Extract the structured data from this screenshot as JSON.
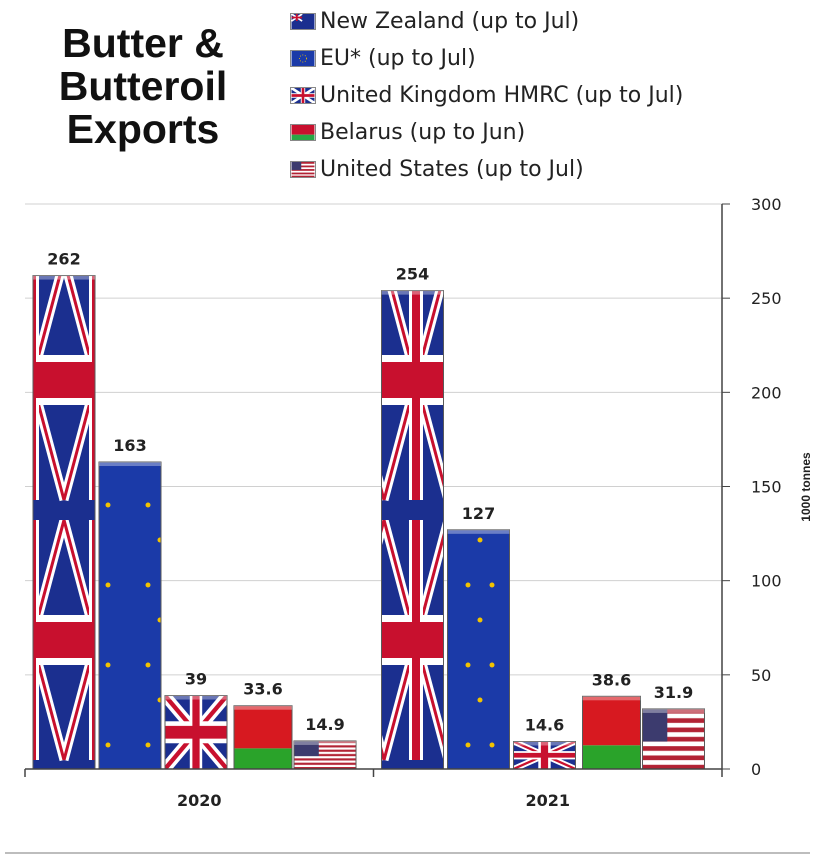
{
  "title_lines": [
    "Butter &",
    "Butteroil",
    "Exports"
  ],
  "legend": [
    {
      "label": "New Zealand (up to Jul)",
      "icon": "new-zealand-flag-icon",
      "color": "#1b2f8f"
    },
    {
      "label": "EU* (up to Jul)",
      "icon": "eu-flag-icon",
      "color": "#1b3aa8"
    },
    {
      "label": "United Kingdom HMRC (up to Jul)",
      "icon": "uk-flag-icon",
      "color": "#b22234"
    },
    {
      "label": "Belarus (up to Jun)",
      "icon": "belarus-flag-icon",
      "color": "#c8102e"
    },
    {
      "label": "United States (up to Jul)",
      "icon": "us-flag-icon",
      "color": "#3c3b6e"
    }
  ],
  "chart_data": {
    "type": "bar",
    "categories": [
      "2020",
      "2021"
    ],
    "series": [
      {
        "name": "New Zealand (up to Jul)",
        "values": [
          262,
          254
        ],
        "labels": [
          "262",
          "254"
        ]
      },
      {
        "name": "EU* (up to Jul)",
        "values": [
          163,
          127
        ],
        "labels": [
          "163",
          "127"
        ]
      },
      {
        "name": "United Kingdom HMRC (up to Jul)",
        "values": [
          39,
          14.6
        ],
        "labels": [
          "39",
          "14.6"
        ]
      },
      {
        "name": "Belarus (up to Jun)",
        "values": [
          33.6,
          38.6
        ],
        "labels": [
          "33.6",
          "38.6"
        ]
      },
      {
        "name": "United States (up to Jul)",
        "values": [
          14.9,
          31.9
        ],
        "labels": [
          "14.9",
          "31.9"
        ]
      }
    ],
    "ylabel": "1000 tonnes",
    "ylim": [
      0,
      300
    ],
    "yticks": [
      0,
      50,
      100,
      150,
      200,
      250,
      300
    ],
    "y_axis_side": "right",
    "grid": true,
    "legend_position": "top"
  }
}
